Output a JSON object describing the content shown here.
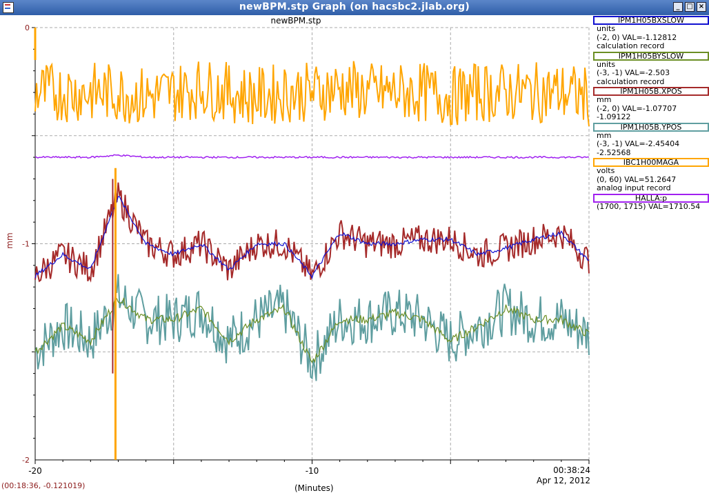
{
  "window": {
    "title": "newBPM.stp Graph (on hacsbc2.jlab.org)"
  },
  "plot": {
    "title": "newBPM.stp",
    "ylabel": "mm",
    "xlabel": "(Minutes)",
    "time": "00:38:24",
    "date": "Apr 12, 2012",
    "status": "(00:18:36, -0.121019)"
  },
  "legend": [
    {
      "name": "IPM1H05BXSLOW",
      "color": "#1010d0",
      "lines": [
        "units",
        "(-2, 0) VAL=-1.12812",
        "calculation record"
      ]
    },
    {
      "name": "IPM1H05BYSLOW",
      "color": "#6b8e23",
      "lines": [
        "units",
        "(-3, -1) VAL=-2.503",
        "calculation record"
      ]
    },
    {
      "name": "IPM1H05B.XPOS",
      "color": "#a52a2a",
      "lines": [
        "mm",
        "(-2, 0) VAL=-1.07707",
        "-1.09122"
      ]
    },
    {
      "name": "IPM1H05B.YPOS",
      "color": "#5f9ea0",
      "lines": [
        "mm",
        "(-3, -1) VAL=-2.45404",
        "-2.52568"
      ]
    },
    {
      "name": "IBC1H00MAGA",
      "color": "#ffa500",
      "lines": [
        "volts",
        "(0, 60) VAL=51.2647",
        "analog input record"
      ]
    },
    {
      "name": "HALLA:p",
      "color": "#a020f0",
      "lines": [
        "(1700, 1715) VAL=1710.54"
      ]
    }
  ],
  "chart_data": {
    "type": "line",
    "title": "newBPM.stp",
    "xlabel": "(Minutes)",
    "ylabel": "mm",
    "xlim": [
      -20,
      0
    ],
    "ylim": [
      -2,
      0
    ],
    "x_ticks": [
      "-20",
      "-10"
    ],
    "y_ticks": [
      "0",
      "-1",
      "-2"
    ],
    "grid": true,
    "legend_position": "right",
    "x": [
      -20,
      -19,
      -18,
      -17,
      -16,
      -15,
      -14,
      -13,
      -12,
      -11,
      -10,
      -9,
      -8,
      -7,
      -6,
      -5,
      -4,
      -3,
      -2,
      -1,
      0
    ],
    "series": [
      {
        "name": "IPM1H05BXSLOW",
        "color": "#1010d0",
        "values": [
          -1.15,
          -1.05,
          -1.12,
          -0.78,
          -1.0,
          -1.05,
          -1.0,
          -1.12,
          -1.0,
          -1.0,
          -1.15,
          -0.95,
          -1.0,
          -1.0,
          -0.98,
          -0.98,
          -1.05,
          -1.02,
          -0.98,
          -0.95,
          -1.08
        ]
      },
      {
        "name": "IPM1H05BYSLOW",
        "color": "#6b8e23",
        "values": [
          -1.5,
          -1.38,
          -1.45,
          -1.25,
          -1.35,
          -1.35,
          -1.3,
          -1.45,
          -1.35,
          -1.3,
          -1.55,
          -1.35,
          -1.35,
          -1.32,
          -1.35,
          -1.45,
          -1.38,
          -1.3,
          -1.35,
          -1.35,
          -1.42
        ]
      },
      {
        "name": "IPM1H05B.XPOS",
        "color": "#a52a2a",
        "values": [
          -1.15,
          -1.05,
          -1.12,
          -0.78,
          -1.0,
          -1.05,
          -1.0,
          -1.12,
          -1.0,
          -1.0,
          -1.15,
          -0.95,
          -1.0,
          -1.0,
          -0.98,
          -0.98,
          -1.05,
          -1.02,
          -0.98,
          -0.95,
          -1.08
        ]
      },
      {
        "name": "IPM1H05B.YPOS",
        "color": "#5f9ea0",
        "values": [
          -1.5,
          -1.38,
          -1.45,
          -1.25,
          -1.35,
          -1.35,
          -1.3,
          -1.45,
          -1.35,
          -1.3,
          -1.55,
          -1.35,
          -1.35,
          -1.32,
          -1.35,
          -1.45,
          -1.38,
          -1.3,
          -1.35,
          -1.35,
          -1.42
        ]
      },
      {
        "name": "IBC1H00MAGA",
        "color": "#ffa500",
        "values": [
          -0.3,
          -0.3,
          -0.3,
          -0.3,
          -0.32,
          -0.3,
          -0.28,
          -0.3,
          -0.32,
          -0.3,
          -0.3,
          -0.28,
          -0.3,
          -0.3,
          -0.3,
          -0.32,
          -0.3,
          -0.3,
          -0.3,
          -0.3,
          -0.32
        ]
      },
      {
        "name": "HALLA:p",
        "color": "#a020f0",
        "values": [
          -0.6,
          -0.6,
          -0.6,
          -0.59,
          -0.6,
          -0.6,
          -0.6,
          -0.6,
          -0.6,
          -0.6,
          -0.6,
          -0.6,
          -0.6,
          -0.6,
          -0.6,
          -0.6,
          -0.6,
          -0.6,
          -0.6,
          -0.6,
          -0.6
        ]
      }
    ]
  }
}
